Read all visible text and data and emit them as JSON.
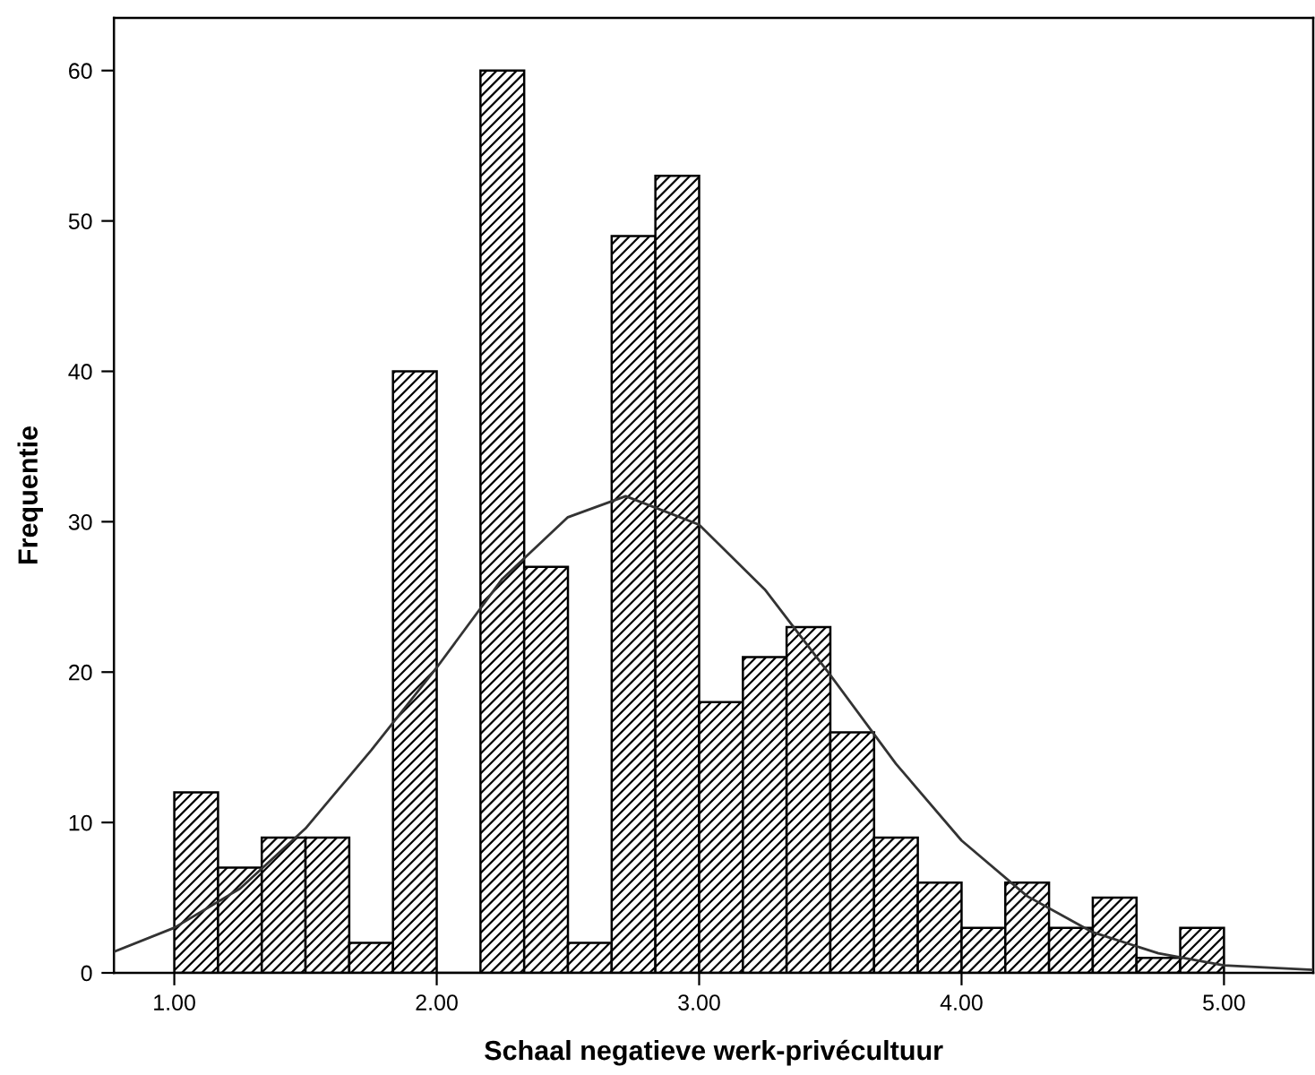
{
  "chart_data": {
    "type": "histogram",
    "xlabel": "Schaal negatieve werk-privécultuur",
    "ylabel": "Frequentie",
    "xlim": [
      0.77,
      5.34
    ],
    "ylim": [
      0,
      63.5
    ],
    "xticks": [
      {
        "value": 1,
        "label": "1.00"
      },
      {
        "value": 2,
        "label": "2.00"
      },
      {
        "value": 3,
        "label": "3.00"
      },
      {
        "value": 4,
        "label": "4.00"
      },
      {
        "value": 5,
        "label": "5.00"
      }
    ],
    "yticks": [
      0,
      10,
      20,
      30,
      40,
      50,
      60
    ],
    "grid": false,
    "legend": false,
    "series": [
      {
        "color": "#000000",
        "bins": [
          1.0,
          1.1667,
          1.3333,
          1.5,
          1.6667,
          1.8333,
          2.0,
          2.1667,
          2.3333,
          2.5,
          2.6667,
          2.8333,
          3.0,
          3.1667,
          3.3333,
          3.5,
          3.6667,
          3.8333,
          4.0,
          4.1667,
          4.3333,
          4.5,
          4.6667,
          4.8333,
          5.0
        ],
        "values": [
          12,
          7,
          9,
          9,
          2,
          40,
          0,
          60,
          27,
          2,
          49,
          53,
          18,
          21,
          23,
          16,
          9,
          6,
          3,
          6,
          3,
          5,
          1,
          3
        ]
      },
      {
        "type": "line",
        "color": "#333333",
        "x": [
          0.77,
          1.0,
          1.25,
          1.5,
          1.75,
          2.0,
          2.25,
          2.5,
          2.72,
          3.0,
          3.25,
          3.5,
          3.75,
          4.0,
          4.25,
          4.5,
          4.75,
          5.0,
          5.34
        ],
        "values": [
          1.4,
          3.0,
          5.6,
          9.6,
          14.8,
          20.3,
          26.2,
          30.3,
          31.7,
          29.8,
          25.5,
          19.8,
          13.9,
          8.8,
          5.1,
          2.7,
          1.3,
          0.5,
          0.2
        ]
      }
    ]
  }
}
